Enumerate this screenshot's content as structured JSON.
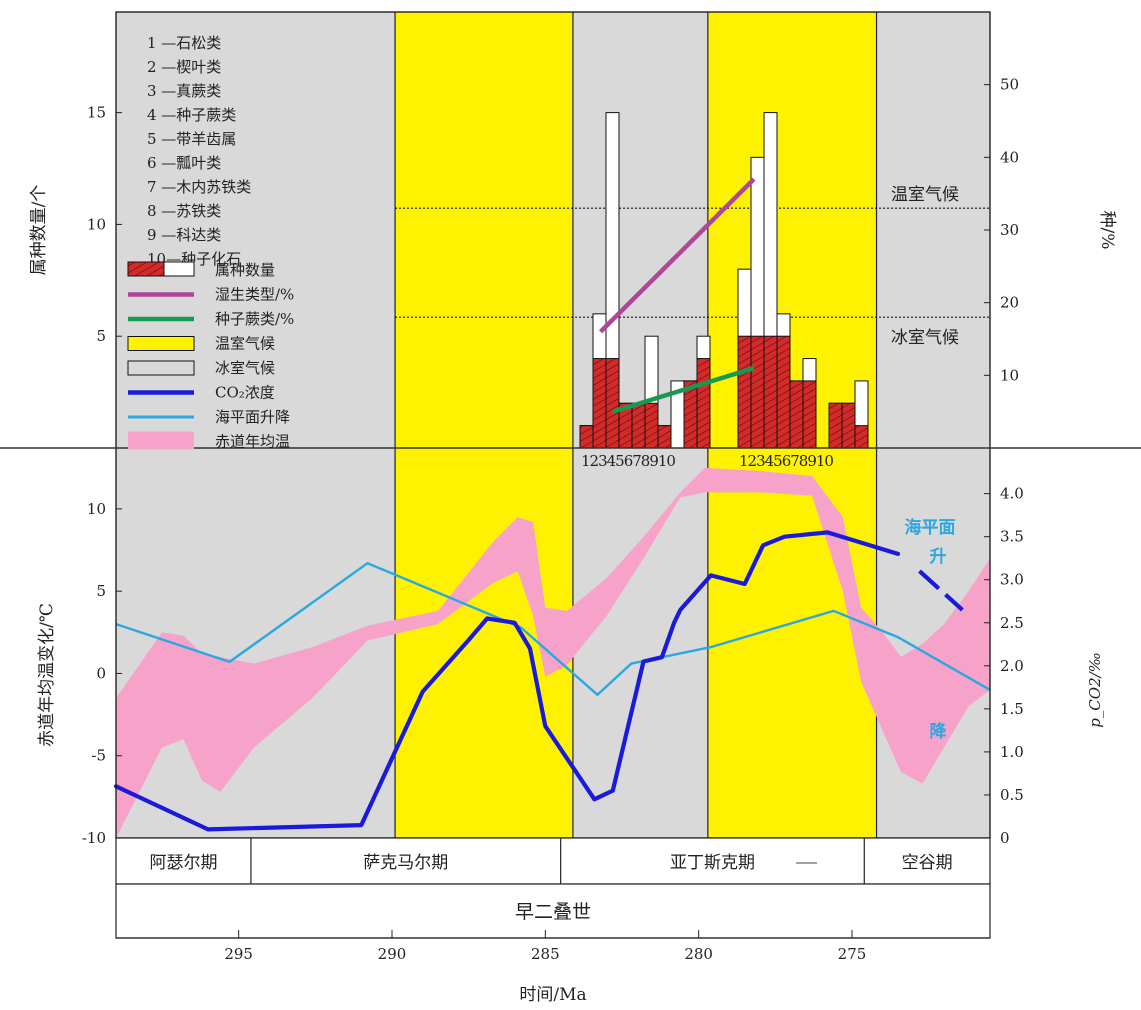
{
  "chart_data": [
    {
      "type": "bar",
      "panel": "upper",
      "ylabel_left": "属种数量/个",
      "ylabel_right": "种/%",
      "yticks_left": [
        "5",
        "10",
        "15"
      ],
      "yticks_right": [
        "10",
        "20",
        "30",
        "40",
        "50"
      ],
      "ylim_left": [
        0,
        19.5
      ],
      "ylim_right": [
        0,
        60
      ],
      "legend_items": [
        {
          "key": "taxa_count",
          "label": "属种数量",
          "color": "#d42a2a"
        },
        {
          "key": "hygro_pct",
          "label": "湿生类型/%",
          "color": "#b0469a"
        },
        {
          "key": "pterido_pct",
          "label": "种子蕨类/%",
          "color": "#179a50"
        },
        {
          "key": "greenhouse",
          "label": "温室气候",
          "color": "#fff200"
        },
        {
          "key": "icehouse",
          "label": "冰室气候",
          "color": "#d9d9d9"
        },
        {
          "key": "co2",
          "label": "CO₂浓度",
          "color": "#1a1adb"
        },
        {
          "key": "sealevel",
          "label": "海平面升降",
          "color": "#2aa8e0"
        },
        {
          "key": "sst",
          "label": "赤道年均温",
          "color": "#f7a3c9"
        }
      ],
      "group_legend": [
        "1 —石松类",
        "2 —楔叶类",
        "3 —真蕨类",
        "4 —种子蕨类",
        "5 —带羊齿属",
        "6 —瓢叶类",
        "7 —木内苏铁类",
        "8 —苏铁类",
        "9 —科达类",
        "10—种子化石"
      ],
      "category_labels": [
        "1",
        "2",
        "3",
        "4",
        "5",
        "6",
        "7",
        "8",
        "9",
        "10"
      ],
      "category_axis_text": [
        "12345678910",
        "12345678910"
      ],
      "climate_labels": {
        "warm": "温室气候",
        "cold": "冰室气候"
      },
      "climate_thresholds_pct": [
        33,
        18
      ],
      "series": [
        {
          "name": "左组·种数",
          "counts": [
            1,
            6,
            15,
            2,
            2,
            5,
            1,
            3,
            3,
            5
          ],
          "genera": [
            1,
            4,
            4,
            2,
            2,
            2,
            1,
            0,
            3,
            4
          ]
        },
        {
          "name": "右组·种数",
          "counts": [
            8,
            13,
            15,
            6,
            3,
            4,
            0,
            2,
            2,
            3
          ],
          "genera": [
            5,
            5,
            5,
            5,
            3,
            3,
            0,
            2,
            2,
            1
          ]
        }
      ],
      "lines": [
        {
          "key": "hygro_pct",
          "points": [
            [
              283.2,
              16
            ],
            [
              278.2,
              37
            ]
          ]
        },
        {
          "key": "pterido_pct",
          "points": [
            [
              282.8,
              5
            ],
            [
              278.2,
              11
            ]
          ]
        }
      ]
    },
    {
      "type": "line",
      "panel": "lower",
      "ylabel_left": "赤道年均温变化/℃",
      "ylabel_right": "p_CO2/‰",
      "yticks_left": [
        "-10",
        "-5",
        "0",
        "5",
        "10"
      ],
      "yticks_right": [
        "0",
        "0.5",
        "1.0",
        "1.5",
        "2.0",
        "2.5",
        "3.0",
        "3.5",
        "4.0"
      ],
      "ylim_left": [
        -10,
        13.7
      ],
      "ylim_right": [
        0,
        4.53
      ],
      "xlabel": "时间/Ma",
      "xticks": [
        "295",
        "290",
        "285",
        "280",
        "275"
      ],
      "xlim": [
        299,
        270.5
      ],
      "sealevel_rise_label": "海平面升",
      "sealevel_fall_label": "降",
      "co2_ppm": {
        "x": [
          299,
          296,
          291,
          289,
          287.5,
          286.9,
          286.0,
          285.5,
          285.0,
          283.4,
          282.8,
          281.8,
          281.2,
          280.8,
          280.6,
          279.6,
          278.5,
          277.9,
          277.2,
          275.8,
          273.5
        ],
        "y": [
          0.6,
          0.1,
          0.15,
          1.7,
          2.3,
          2.55,
          2.5,
          2.2,
          1.3,
          0.45,
          0.55,
          2.05,
          2.1,
          2.5,
          2.65,
          3.05,
          2.95,
          3.4,
          3.5,
          3.55,
          3.3
        ]
      },
      "co2_dashed": {
        "x": [
          272.8,
          271.4
        ],
        "y": [
          3.1,
          2.65
        ]
      },
      "sealevel_c": {
        "x": [
          299,
          295.3,
          290.8,
          285.8,
          283.3,
          282.2,
          279.6,
          275.6,
          273.5,
          270.5
        ],
        "y": [
          3,
          0.7,
          6.7,
          2.8,
          -1.3,
          0.6,
          1.6,
          3.8,
          2.2,
          -1
        ],
        "note": "°C-equivalent curve position"
      },
      "sst_band": {
        "x": [
          299,
          297.5,
          296.8,
          296.2,
          295.6,
          294.5,
          292.6,
          290.8,
          288.5,
          286.7,
          285.9,
          285.4,
          285.0,
          284.3,
          283.0,
          281.8,
          280.6,
          279.8,
          278.0,
          276.3,
          275.3,
          274.7,
          274.0,
          273.4,
          272.7,
          272.0,
          271.2,
          270.5
        ],
        "upper": [
          -1.5,
          2.5,
          2.3,
          1.2,
          1.0,
          0.6,
          1.6,
          2.9,
          3.8,
          8.0,
          9.5,
          9.2,
          4.0,
          3.8,
          5.8,
          8.3,
          11.0,
          12.5,
          12.3,
          12.0,
          9.5,
          4.0,
          2.5,
          1.0,
          1.8,
          3.0,
          5.0,
          7.0
        ],
        "lower": [
          -10,
          -4.5,
          -4.0,
          -6.5,
          -7.2,
          -4.5,
          -1.5,
          2.0,
          3.0,
          5.5,
          6.2,
          3.5,
          -0.2,
          0.5,
          3.5,
          7.0,
          10.7,
          11.0,
          11.0,
          10.8,
          5.0,
          -0.5,
          -3.5,
          -6.0,
          -6.7,
          -4.5,
          -2.0,
          -1.0
        ]
      }
    }
  ],
  "time_axis": {
    "stage_labels": [
      "阿瑟尔期",
      "萨克马尔期",
      "亚丁斯克期",
      "空谷期"
    ],
    "epoch_label": "早二叠世"
  },
  "background_periods": [
    {
      "from": 299,
      "to": 289.9,
      "kind": "icehouse"
    },
    {
      "from": 289.9,
      "to": 284.1,
      "kind": "greenhouse"
    },
    {
      "from": 284.1,
      "to": 279.7,
      "kind": "icehouse"
    },
    {
      "from": 279.7,
      "to": 274.2,
      "kind": "greenhouse"
    },
    {
      "from": 274.2,
      "to": 270.5,
      "kind": "icehouse"
    }
  ],
  "colors": {
    "icehouse_bg": "#d9d9d9",
    "greenhouse_bg": "#fff200",
    "co2": "#1a1adb",
    "sealevel": "#2aa8e0",
    "sst": "#f7a3c9",
    "bar_red": "#d42a2a",
    "hygro": "#b0469a",
    "pterido": "#179a50"
  }
}
